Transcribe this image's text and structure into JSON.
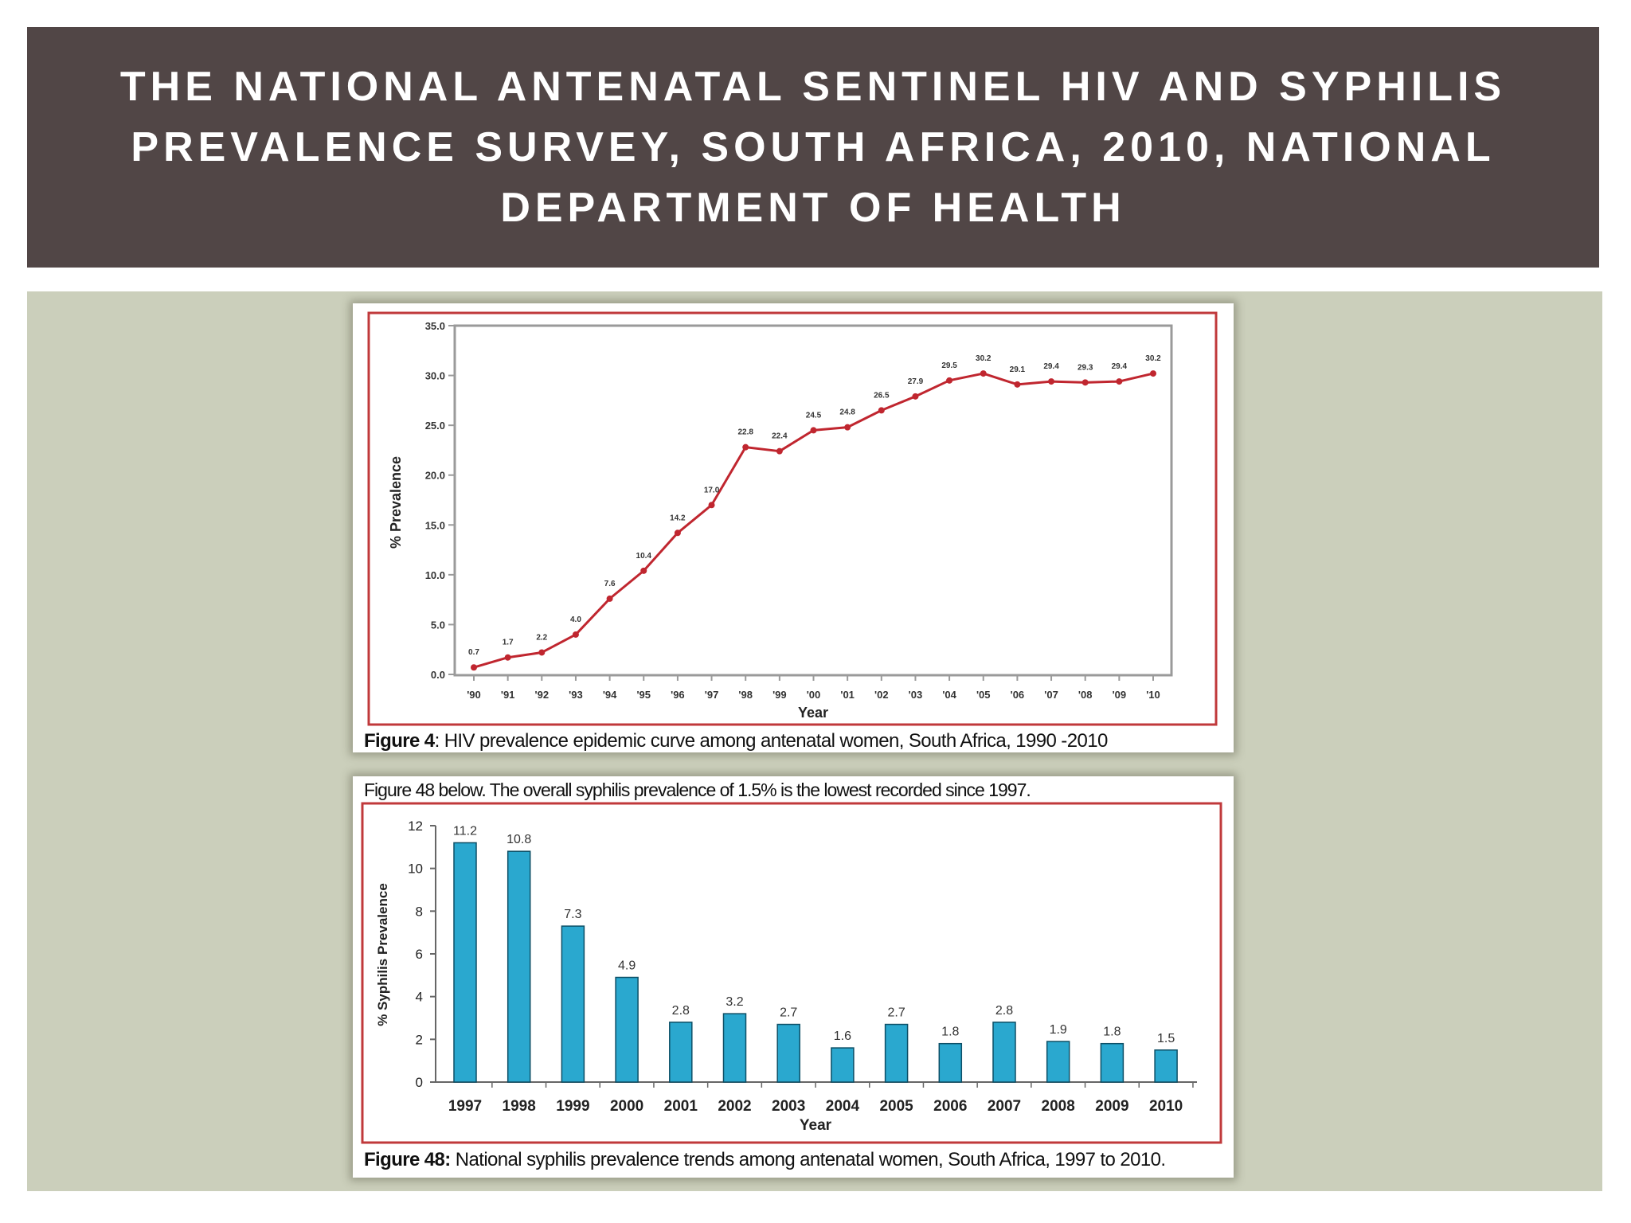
{
  "slide": {
    "title": "THE NATIONAL ANTENATAL SENTINEL HIV AND SYPHILIS PREVALENCE SURVEY, SOUTH AFRICA, 2010, NATIONAL DEPARTMENT OF HEALTH"
  },
  "colors": {
    "title_bar": "#514646",
    "panel": "#cbcfbb",
    "frame_red": "#c0393b",
    "hiv_line": "#c0262f",
    "bar_fill": "#2aa8cf"
  },
  "hiv_figure": {
    "caption_label": "Figure 4",
    "caption_text": ": HIV prevalence epidemic curve among antenatal women, South Africa, 1990 -2010"
  },
  "syphilis_figure": {
    "intro": "Figure 48 below.  The overall syphilis prevalence of 1.5% is the lowest recorded since 1997.",
    "caption_label": "Figure 48:",
    "caption_text": " National syphilis prevalence trends among antenatal women, South Africa, 1997 to 2010."
  },
  "chart_data": [
    {
      "type": "line",
      "xlabel": "Year",
      "ylabel": "% Prevalence",
      "ylim": [
        0,
        35
      ],
      "yticks": [
        "0.0",
        "5.0",
        "10.0",
        "15.0",
        "20.0",
        "25.0",
        "30.0",
        "35.0"
      ],
      "grid": false,
      "categories": [
        "'90",
        "'91",
        "'92",
        "'93",
        "'94",
        "'95",
        "'96",
        "'97",
        "'98",
        "'99",
        "'00",
        "'01",
        "'02",
        "'03",
        "'04",
        "'05",
        "'06",
        "'07",
        "'08",
        "'09",
        "'10"
      ],
      "values": [
        0.7,
        1.7,
        2.2,
        4.0,
        7.6,
        10.4,
        14.2,
        17.0,
        22.8,
        22.4,
        24.5,
        24.8,
        26.5,
        27.9,
        29.5,
        30.2,
        29.1,
        29.4,
        29.3,
        29.4,
        30.2
      ],
      "data_labels": [
        "0.7",
        "1.7",
        "2.2",
        "4.0",
        "7.6",
        "10.4",
        "14.2",
        "17.0",
        "22.8",
        "22.4",
        "24.5",
        "24.8",
        "26.5",
        "27.9",
        "29.5",
        "30.2",
        "29.1",
        "29.4",
        "29.3",
        "29.4",
        "30.2"
      ]
    },
    {
      "type": "bar",
      "xlabel": "Year",
      "ylabel": "% Syphilis Prevalence",
      "ylim": [
        0,
        12
      ],
      "yticks": [
        "0",
        "2",
        "4",
        "6",
        "8",
        "10",
        "12"
      ],
      "grid": false,
      "categories": [
        "1997",
        "1998",
        "1999",
        "2000",
        "2001",
        "2002",
        "2003",
        "2004",
        "2005",
        "2006",
        "2007",
        "2008",
        "2009",
        "2010"
      ],
      "values": [
        11.2,
        10.8,
        7.3,
        4.9,
        2.8,
        3.2,
        2.7,
        1.6,
        2.7,
        1.8,
        2.8,
        1.9,
        1.8,
        1.5
      ],
      "data_labels": [
        "11.2",
        "10.8",
        "7.3",
        "4.9",
        "2.8",
        "3.2",
        "2.7",
        "1.6",
        "2.7",
        "1.8",
        "2.8",
        "1.9",
        "1.8",
        "1.5"
      ]
    }
  ]
}
